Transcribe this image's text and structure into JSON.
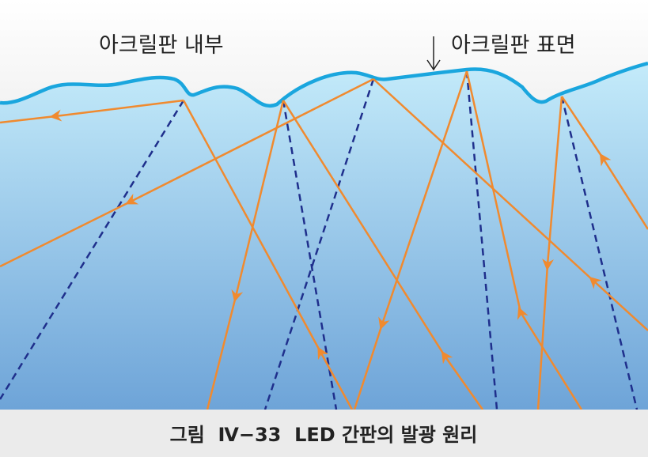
{
  "labels": {
    "inside": "아크릴판 내부",
    "surface": "아크릴판 표면"
  },
  "caption": "그림  Ⅳ−33  LED 간판의 발광 원리"
}
